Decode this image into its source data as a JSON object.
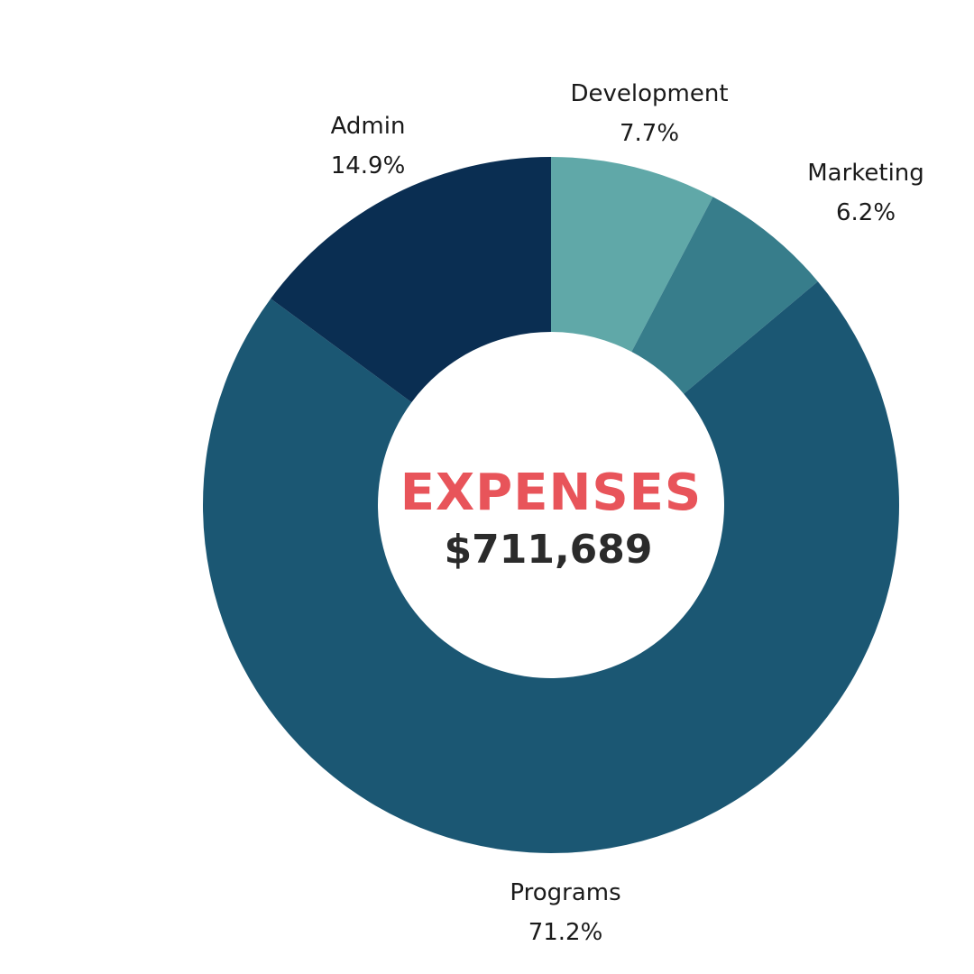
{
  "chart_data": {
    "type": "pie",
    "center_title": "EXPENSES",
    "center_total": "$711,689",
    "slices": [
      {
        "name": "Development",
        "percent_label": "7.7%",
        "value": 7.7,
        "color": "#60a8a8"
      },
      {
        "name": "Marketing",
        "percent_label": "6.2%",
        "value": 6.2,
        "color": "#377d8b"
      },
      {
        "name": "Programs",
        "percent_label": "71.2%",
        "value": 71.2,
        "color": "#1b5773"
      },
      {
        "name": "Admin",
        "percent_label": "14.9%",
        "value": 14.9,
        "color": "#0a2e52"
      }
    ]
  },
  "colors": {
    "title": "#e8545a",
    "total": "#2b2b2b",
    "label": "#1a1a1a"
  }
}
